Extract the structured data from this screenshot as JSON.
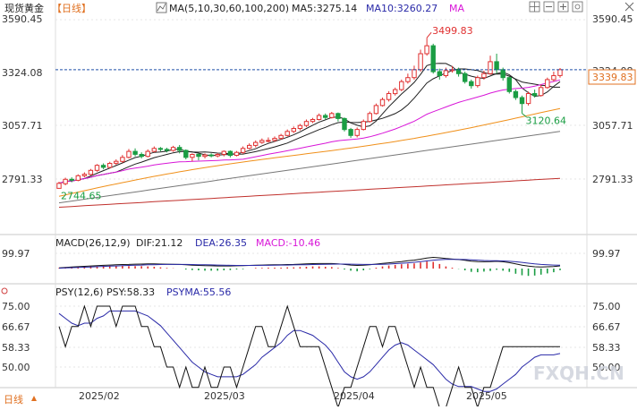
{
  "header": {
    "instrument": "现货黄金",
    "period": "【日线】",
    "ma_label": "MA(5,10,30,60,100,200)",
    "ma5": "MA5:3275.14",
    "ma10": "MA10:3260.27",
    "ma_more": "MA"
  },
  "toolbar_icons": [
    "grid-icon",
    "minus-icon",
    "plus-icon",
    "settings-icon",
    "close-icon"
  ],
  "colors": {
    "up": "#e03131",
    "down": "#1a9d43",
    "ma5": "#1f1f1f",
    "ma10": "#1f1f1f",
    "ma30": "#d816d8",
    "ma60": "#f0901a",
    "ma100": "#777777",
    "ma200": "#c0302c",
    "dif": "#111111",
    "dea": "#2a2aa8",
    "macd_pos": "#e03131",
    "macd_neg": "#1a9d43",
    "psy": "#111111",
    "psyma": "#2a2aa8",
    "last_price": "#1f4fa8"
  },
  "price_panel": {
    "y_ticks": [
      "3590.45",
      "3324.08",
      "3057.71",
      "2791.33"
    ],
    "last_price_tag": "3339.83",
    "high_annotation": "3499.83",
    "low_recent_annotation": "3120.64",
    "low_annotation": "2744.65"
  },
  "macd_panel": {
    "title": "MACD(26,12,9)",
    "dif": "DIF:21.12",
    "dea": "DEA:26.35",
    "macd": "MACD:-10.46",
    "y_tick": "99.97"
  },
  "psy_panel": {
    "title": "PSY(12,6)",
    "psy": "PSY:58.33",
    "psyma": "PSYMA:55.56",
    "y_ticks": [
      "75.00",
      "66.67",
      "58.33",
      "50.00"
    ]
  },
  "x_axis": {
    "labels": [
      "2025/02",
      "2025/03",
      "2025/04",
      "2025/05"
    ],
    "period_selector": "日线"
  },
  "watermark": "FXQH.CN",
  "chart_data": {
    "type": "candlestick",
    "period": "daily",
    "x_labels": [
      "2025/02",
      "2025/03",
      "2025/04",
      "2025/05"
    ],
    "price_axis": {
      "ticks": [
        3590.45,
        3324.08,
        3057.71,
        2791.33
      ],
      "range": [
        2650,
        3600
      ]
    },
    "annotations": {
      "high": 3499.83,
      "recent_low": 3120.64,
      "low": 2744.65,
      "last": 3339.83
    },
    "candles": [
      [
        2745,
        2770,
        2744.65,
        2778
      ],
      [
        2768,
        2790,
        2760,
        2798
      ],
      [
        2790,
        2785,
        2775,
        2800
      ],
      [
        2785,
        2808,
        2780,
        2815
      ],
      [
        2808,
        2815,
        2800,
        2825
      ],
      [
        2815,
        2835,
        2810,
        2842
      ],
      [
        2835,
        2860,
        2828,
        2866
      ],
      [
        2860,
        2850,
        2840,
        2870
      ],
      [
        2850,
        2870,
        2845,
        2878
      ],
      [
        2870,
        2880,
        2862,
        2890
      ],
      [
        2880,
        2900,
        2872,
        2912
      ],
      [
        2900,
        2930,
        2895,
        2942
      ],
      [
        2930,
        2915,
        2905,
        2945
      ],
      [
        2915,
        2905,
        2895,
        2925
      ],
      [
        2905,
        2930,
        2900,
        2940
      ],
      [
        2930,
        2945,
        2925,
        2955
      ],
      [
        2945,
        2940,
        2930,
        2952
      ],
      [
        2940,
        2935,
        2925,
        2948
      ],
      [
        2935,
        2950,
        2928,
        2958
      ],
      [
        2950,
        2935,
        2920,
        2962
      ],
      [
        2935,
        2900,
        2890,
        2940
      ],
      [
        2900,
        2915,
        2880,
        2920
      ],
      [
        2915,
        2905,
        2885,
        2922
      ],
      [
        2905,
        2912,
        2895,
        2920
      ],
      [
        2912,
        2908,
        2900,
        2920
      ],
      [
        2908,
        2915,
        2900,
        2922
      ],
      [
        2915,
        2930,
        2905,
        2935
      ],
      [
        2930,
        2910,
        2900,
        2935
      ],
      [
        2910,
        2925,
        2905,
        2932
      ],
      [
        2925,
        2945,
        2918,
        2955
      ],
      [
        2945,
        2960,
        2940,
        2970
      ],
      [
        2960,
        2975,
        2950,
        2985
      ],
      [
        2975,
        2985,
        2968,
        2995
      ],
      [
        2985,
        2985,
        2975,
        3000
      ],
      [
        2985,
        2995,
        2978,
        3005
      ],
      [
        2995,
        3010,
        2988,
        3018
      ],
      [
        3010,
        3030,
        3005,
        3040
      ],
      [
        3030,
        3045,
        3022,
        3055
      ],
      [
        3045,
        3060,
        3035,
        3068
      ],
      [
        3060,
        3080,
        3052,
        3090
      ],
      [
        3080,
        3090,
        3072,
        3098
      ],
      [
        3090,
        3110,
        3085,
        3120
      ],
      [
        3110,
        3100,
        3088,
        3120
      ],
      [
        3100,
        3120,
        3095,
        3128
      ],
      [
        3120,
        3095,
        3080,
        3125
      ],
      [
        3095,
        3040,
        3030,
        3100
      ],
      [
        3040,
        3010,
        2998,
        3048
      ],
      [
        3010,
        3040,
        3000,
        3050
      ],
      [
        3040,
        3080,
        3035,
        3090
      ],
      [
        3080,
        3120,
        3075,
        3130
      ],
      [
        3120,
        3160,
        3115,
        3170
      ],
      [
        3160,
        3190,
        3155,
        3200
      ],
      [
        3190,
        3220,
        3180,
        3232
      ],
      [
        3220,
        3240,
        3210,
        3250
      ],
      [
        3240,
        3280,
        3232,
        3290
      ],
      [
        3280,
        3300,
        3270,
        3320
      ],
      [
        3300,
        3340,
        3290,
        3360
      ],
      [
        3340,
        3420,
        3330,
        3440
      ],
      [
        3420,
        3460,
        3410,
        3499.83
      ],
      [
        3460,
        3330,
        3320,
        3470
      ],
      [
        3330,
        3310,
        3290,
        3345
      ],
      [
        3310,
        3335,
        3300,
        3350
      ],
      [
        3335,
        3340,
        3325,
        3358
      ],
      [
        3340,
        3320,
        3305,
        3350
      ],
      [
        3320,
        3280,
        3270,
        3330
      ],
      [
        3280,
        3260,
        3245,
        3290
      ],
      [
        3260,
        3300,
        3250,
        3310
      ],
      [
        3300,
        3320,
        3290,
        3335
      ],
      [
        3320,
        3380,
        3315,
        3410
      ],
      [
        3380,
        3340,
        3320,
        3420
      ],
      [
        3340,
        3300,
        3285,
        3350
      ],
      [
        3300,
        3230,
        3220,
        3305
      ],
      [
        3230,
        3200,
        3188,
        3240
      ],
      [
        3200,
        3170,
        3120.64,
        3210
      ],
      [
        3170,
        3220,
        3160,
        3230
      ],
      [
        3220,
        3210,
        3200,
        3240
      ],
      [
        3210,
        3250,
        3205,
        3265
      ],
      [
        3250,
        3290,
        3245,
        3300
      ],
      [
        3290,
        3310,
        3280,
        3330
      ],
      [
        3310,
        3339.83,
        3300,
        3348
      ]
    ],
    "ma_lines": [
      {
        "name": "MA5",
        "period": 5,
        "last": 3275.14
      },
      {
        "name": "MA10",
        "period": 10,
        "last": 3260.27
      },
      {
        "name": "MA30",
        "period": 30
      },
      {
        "name": "MA60",
        "period": 60
      },
      {
        "name": "MA100",
        "period": 100
      },
      {
        "name": "MA200",
        "period": 200
      }
    ],
    "macd": {
      "params": "26,12,9",
      "dif": 21.12,
      "dea": 26.35,
      "macd": -10.46,
      "tick": 99.97,
      "dif_series": [
        5,
        9,
        12,
        15,
        18,
        21,
        23,
        26,
        28,
        30,
        32,
        33,
        35,
        36,
        37,
        37,
        36,
        35,
        34,
        33,
        30,
        27,
        25,
        23,
        22,
        21,
        21,
        21,
        22,
        23,
        25,
        27,
        28,
        29,
        30,
        31,
        32,
        33,
        35,
        37,
        39,
        40,
        40,
        40,
        38,
        33,
        28,
        25,
        27,
        31,
        36,
        41,
        46,
        51,
        56,
        62,
        67,
        75,
        84,
        89,
        86,
        80,
        76,
        72,
        66,
        59,
        55,
        54,
        55,
        58,
        54,
        47,
        37,
        27,
        19,
        14,
        13,
        14,
        16,
        21.12
      ],
      "dea_series": [
        3,
        5,
        7,
        9,
        11,
        13,
        15,
        17,
        19,
        21,
        23,
        25,
        27,
        28,
        30,
        31,
        32,
        33,
        33,
        33,
        33,
        32,
        31,
        30,
        29,
        28,
        27,
        26,
        25,
        25,
        25,
        25,
        26,
        26,
        27,
        28,
        28,
        29,
        30,
        31,
        32,
        33,
        34,
        35,
        36,
        36,
        35,
        34,
        33,
        33,
        33,
        34,
        36,
        39,
        42,
        46,
        50,
        55,
        61,
        67,
        71,
        73,
        73,
        73,
        72,
        70,
        67,
        64,
        63,
        62,
        61,
        58,
        54,
        49,
        43,
        37,
        33,
        30,
        28,
        26.35
      ],
      "macd_bars": [
        4,
        8,
        10,
        12,
        14,
        16,
        16,
        18,
        18,
        18,
        18,
        16,
        16,
        16,
        14,
        12,
        8,
        4,
        2,
        0,
        -6,
        -10,
        -12,
        -14,
        -14,
        -14,
        -12,
        -10,
        -6,
        -4,
        0,
        4,
        4,
        6,
        6,
        6,
        8,
        8,
        10,
        12,
        14,
        14,
        12,
        10,
        4,
        -6,
        -14,
        -18,
        -12,
        -4,
        6,
        14,
        20,
        24,
        28,
        32,
        34,
        40,
        46,
        44,
        30,
        14,
        6,
        -2,
        -12,
        -22,
        -24,
        -20,
        -16,
        -8,
        -14,
        -22,
        -34,
        -44,
        -48,
        -46,
        -40,
        -32,
        -24,
        -10.46
      ]
    },
    "psy": {
      "params": "12,6",
      "psy": 58.33,
      "psyma": 55.56,
      "ticks": [
        75.0,
        66.67,
        58.33,
        50.0
      ],
      "psy_series": [
        66.67,
        58.33,
        66.67,
        66.67,
        75,
        66.67,
        75,
        75,
        75,
        66.67,
        75,
        75,
        75,
        66.67,
        66.67,
        58.33,
        58.33,
        50,
        50,
        41.67,
        50,
        41.67,
        41.67,
        50,
        41.67,
        41.67,
        50,
        50,
        41.67,
        50,
        58.33,
        66.67,
        66.67,
        58.33,
        58.33,
        66.67,
        75,
        66.67,
        58.33,
        58.33,
        58.33,
        58.33,
        50,
        41.67,
        33.33,
        41.67,
        41.67,
        50,
        58.33,
        66.67,
        66.67,
        58.33,
        66.67,
        66.67,
        58.33,
        50,
        41.67,
        50,
        41.67,
        41.67,
        33.33,
        33.33,
        41.67,
        50,
        41.67,
        41.67,
        33.33,
        41.67,
        41.67,
        50,
        58.33,
        58.33,
        58.33,
        58.33,
        58.33,
        58.33,
        58.33,
        58.33,
        58.33,
        58.33
      ],
      "psyma_series": [
        72,
        70,
        68,
        67,
        68,
        68,
        70,
        71,
        73,
        73,
        73,
        73,
        73,
        72,
        71,
        69,
        67,
        64,
        61,
        58,
        55,
        52,
        50,
        48,
        47,
        46,
        46,
        46,
        46,
        47,
        49,
        51,
        54,
        56,
        58,
        60,
        63,
        65,
        65,
        64,
        63,
        61,
        59,
        56,
        52,
        48,
        46,
        45,
        46,
        48,
        51,
        54,
        57,
        59,
        60,
        59,
        57,
        55,
        53,
        51,
        48,
        45,
        43,
        42,
        42,
        42,
        41,
        40,
        40,
        41,
        43,
        45,
        47,
        50,
        52,
        54,
        55,
        55,
        55,
        55.56
      ]
    }
  }
}
